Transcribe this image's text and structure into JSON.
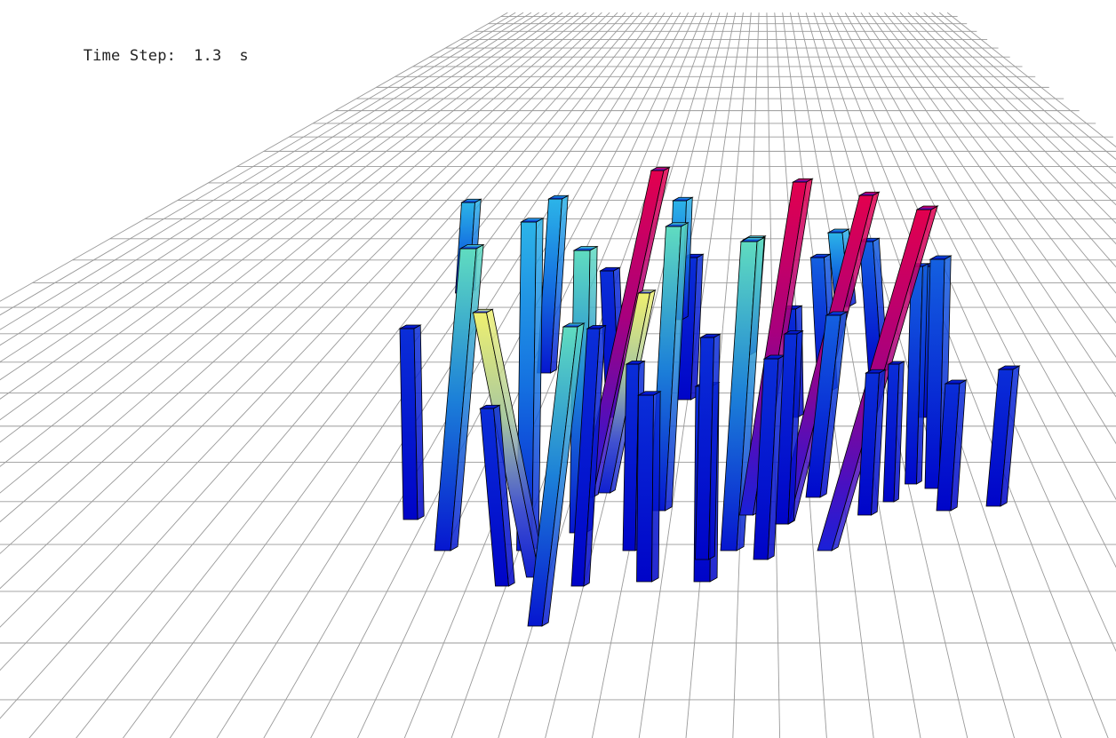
{
  "hud": {
    "label": "Time Step:",
    "value": "1.3",
    "unit": "s"
  },
  "colors": {
    "background": "#ffffff",
    "grid": "#9a9a9a",
    "edge": "#000000"
  },
  "colormap": [
    "#0000d0",
    "#1560e0",
    "#22b0e0",
    "#5ae0b8",
    "#e8f070",
    "#c0006a",
    "#e00050"
  ]
}
